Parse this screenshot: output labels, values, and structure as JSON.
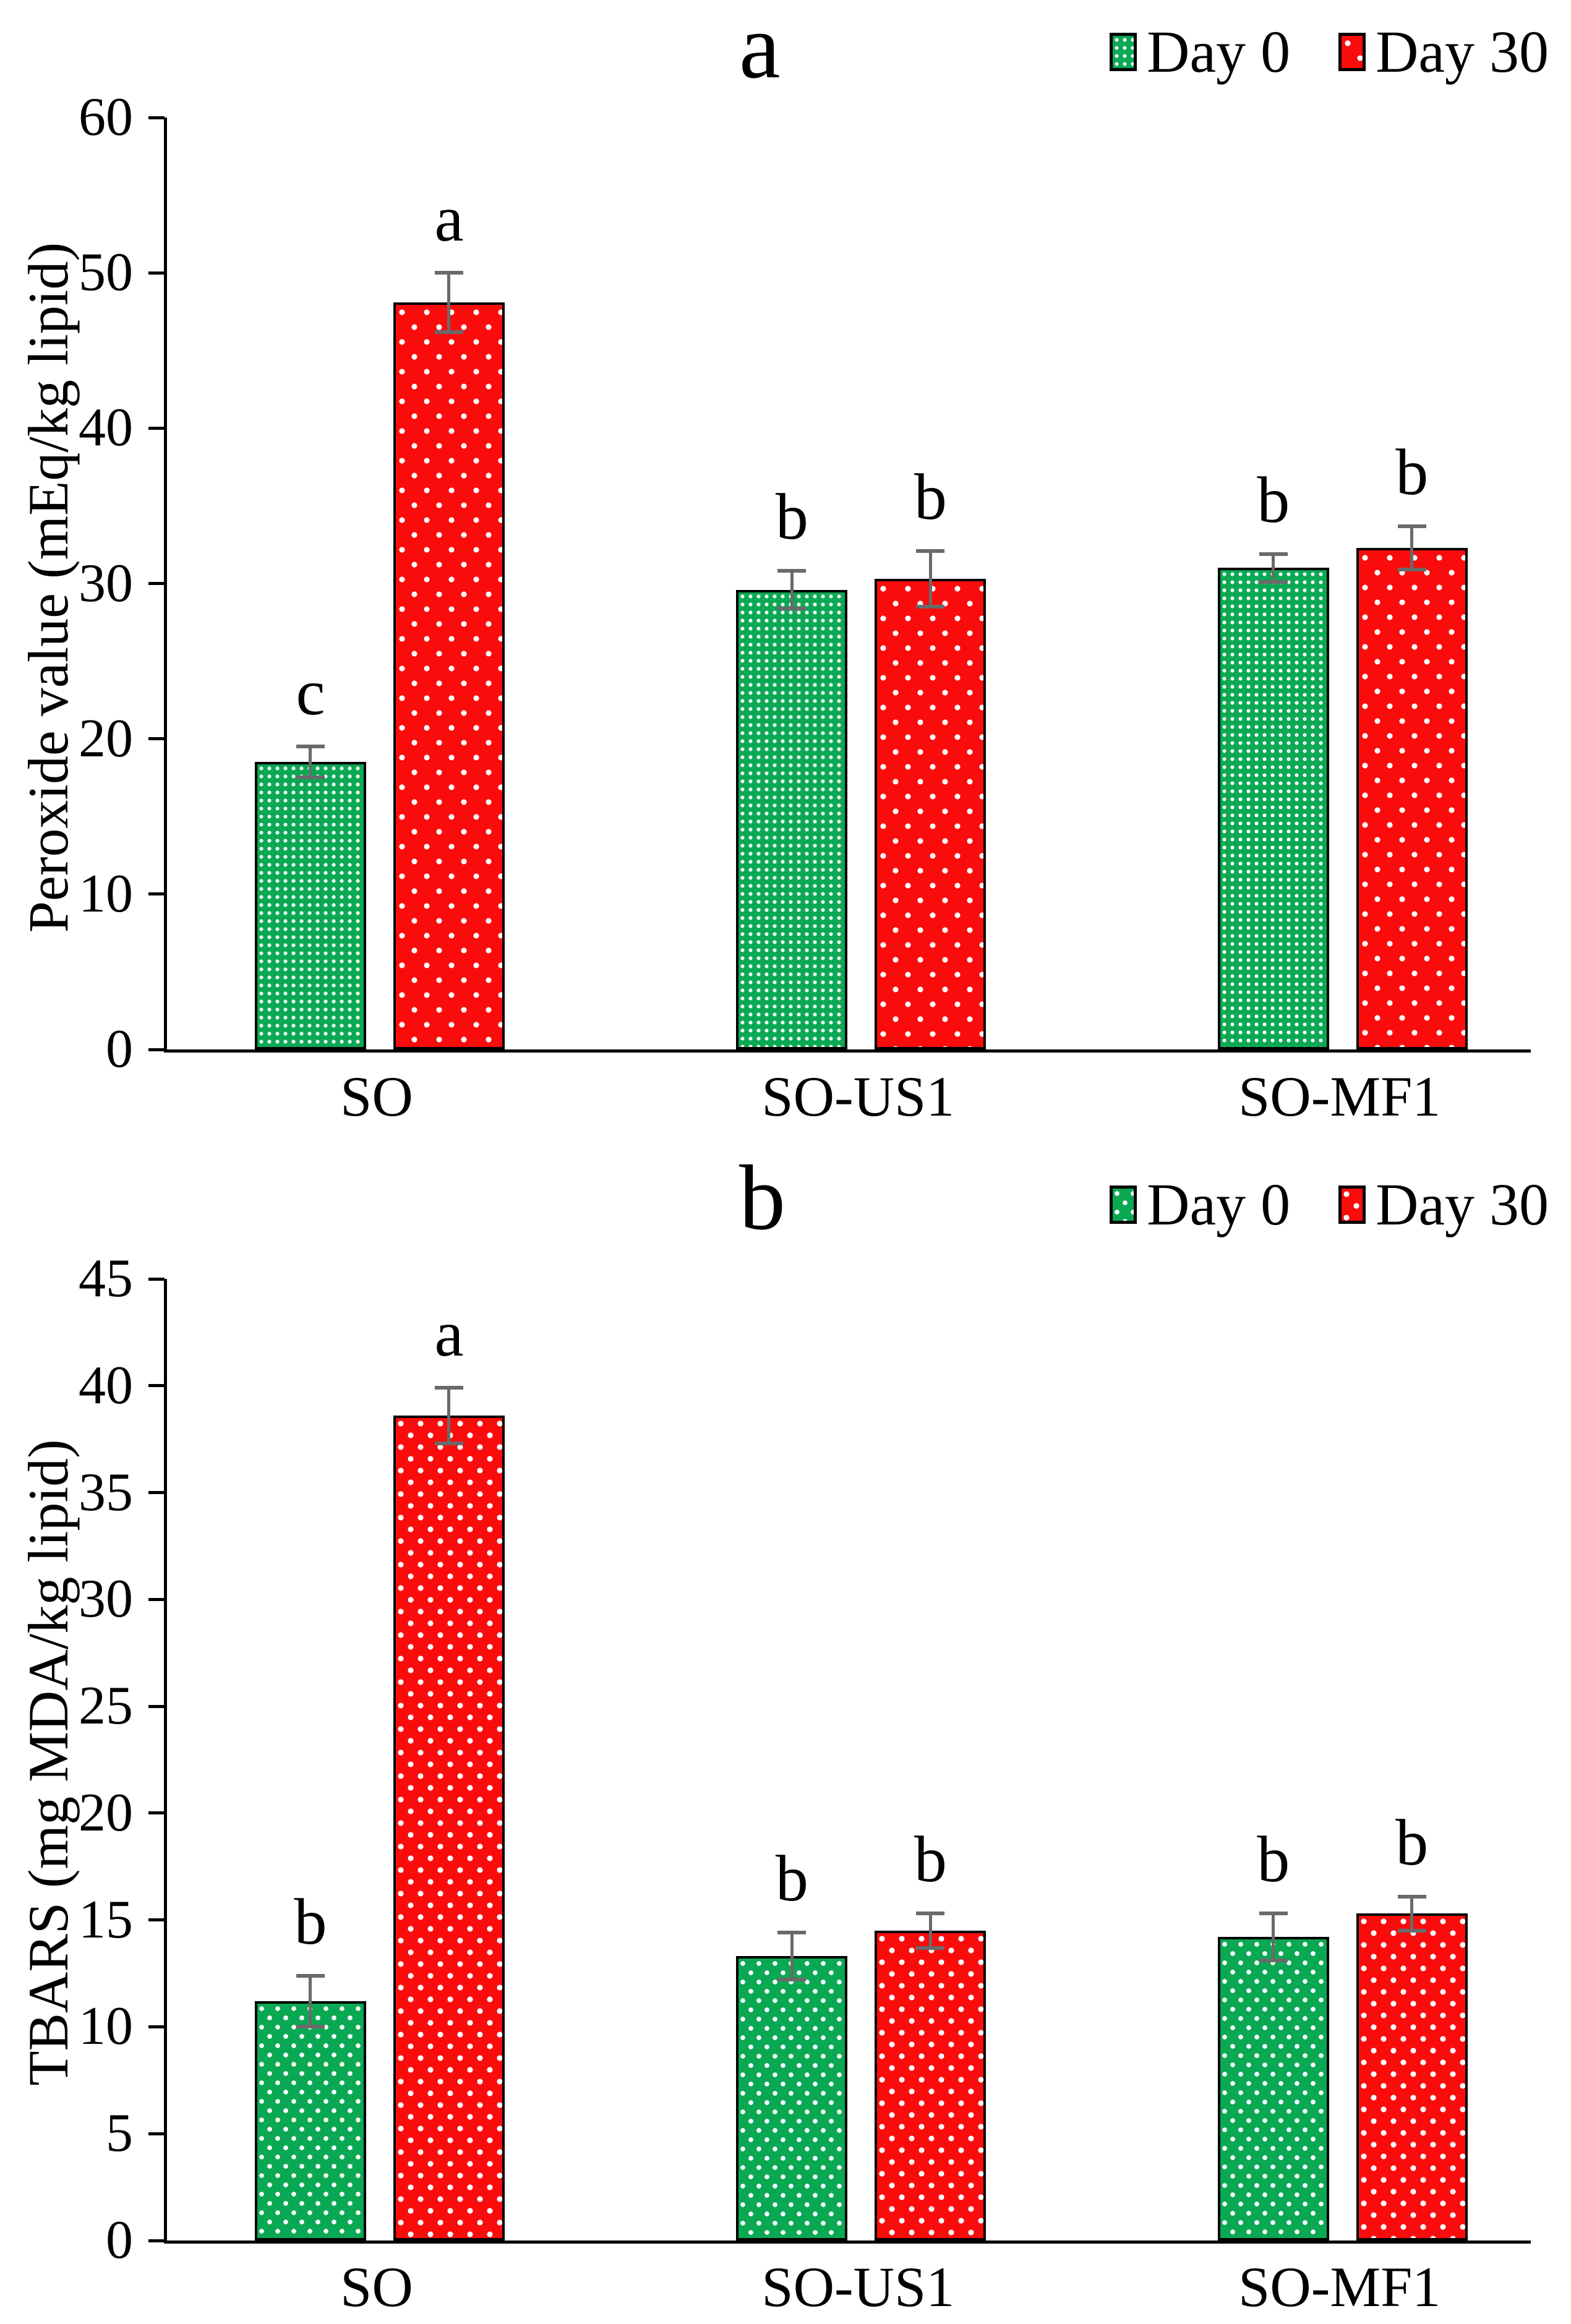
{
  "figure": {
    "type": "two-panel scientific bar figure",
    "colors": {
      "day0_fill": "#0BA853",
      "day30_fill": "#FA0C0C",
      "bar_border": "#000000",
      "error_bar": "#6A6A6A",
      "axis": "#000000",
      "background": "#FFFFFF"
    }
  },
  "chart_data": [
    {
      "id": "a",
      "panel_label": "a",
      "type": "bar",
      "title": "",
      "xlabel": "",
      "ylabel": "Peroxide value (mEq/kg lipid)",
      "ylim": [
        0,
        60
      ],
      "yticks": [
        0,
        10,
        20,
        30,
        40,
        50,
        60
      ],
      "grid": false,
      "legend_position": "top-right",
      "categories": [
        "SO",
        "SO-US1",
        "SO-MF1"
      ],
      "series": [
        {
          "name": "Day 0",
          "color": "#0BA853",
          "values": [
            18.5,
            29.6,
            31.0
          ],
          "errors": [
            1.0,
            1.2,
            0.9
          ],
          "sig_labels": [
            "c",
            "b",
            "b"
          ]
        },
        {
          "name": "Day 30",
          "color": "#FA0C0C",
          "values": [
            48.1,
            30.3,
            32.3
          ],
          "errors": [
            1.9,
            1.8,
            1.4
          ],
          "sig_labels": [
            "a",
            "b",
            "b"
          ]
        }
      ]
    },
    {
      "id": "b",
      "panel_label": "b",
      "type": "bar",
      "title": "",
      "xlabel": "",
      "ylabel": "TBARS (mg MDA/kg lipid)",
      "ylim": [
        0,
        45
      ],
      "yticks": [
        0,
        5,
        10,
        15,
        20,
        25,
        30,
        35,
        40,
        45
      ],
      "grid": false,
      "legend_position": "top-right",
      "categories": [
        "SO",
        "SO-US1",
        "SO-MF1"
      ],
      "series": [
        {
          "name": "Day 0",
          "color": "#0BA853",
          "values": [
            11.2,
            13.3,
            14.2
          ],
          "errors": [
            1.2,
            1.1,
            1.1
          ],
          "sig_labels": [
            "b",
            "b",
            "b"
          ]
        },
        {
          "name": "Day 30",
          "color": "#FA0C0C",
          "values": [
            38.6,
            14.5,
            15.3
          ],
          "errors": [
            1.3,
            0.8,
            0.8
          ],
          "sig_labels": [
            "a",
            "b",
            "b"
          ]
        }
      ]
    }
  ]
}
